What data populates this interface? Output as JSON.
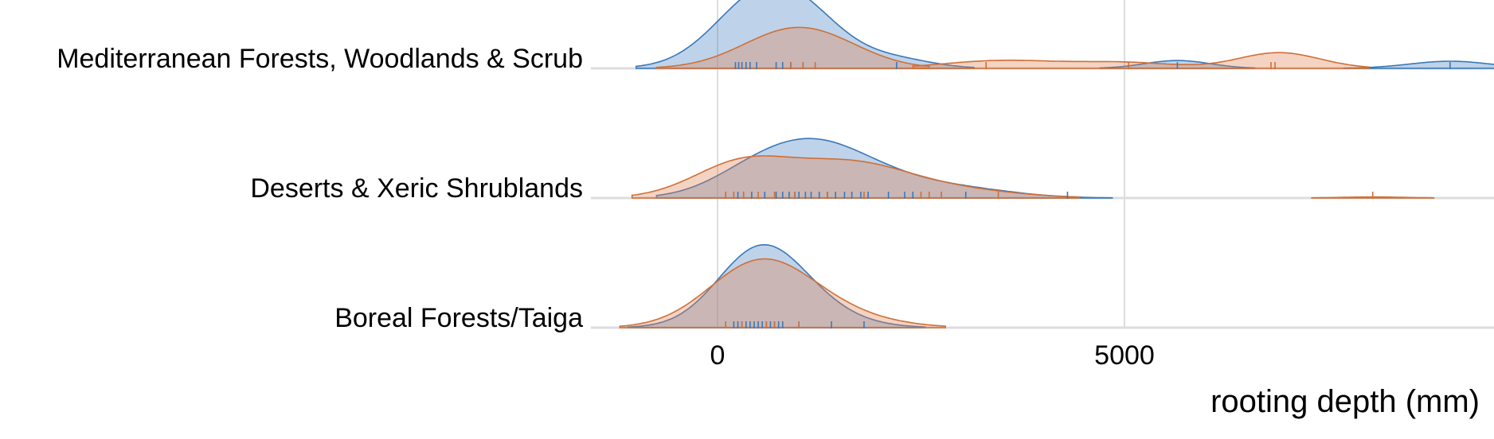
{
  "chart_data": {
    "type": "ridgeline",
    "xlabel": "rooting depth (mm)",
    "x_ticks": [
      0,
      5000
    ],
    "x_range": [
      -1550,
      9600
    ],
    "grid": "vertical",
    "colors": {
      "blue": "#3a78b9",
      "orange": "#cf6f36"
    },
    "rows": [
      {
        "label": "Mediterranean Forests, Woodlands & Scrub",
        "series": [
          {
            "color": "blue",
            "segments": [
              {
                "range": [
                  -1000,
                  3150
                ],
                "peaks": [
                  [
                    550,
                    580,
                    1.0
                  ],
                  [
                    1200,
                    500,
                    0.35
                  ],
                  [
                    2200,
                    450,
                    0.12
                  ]
                ]
              },
              {
                "range": [
                  4700,
                  6600
                ],
                "peaks": [
                  [
                    5650,
                    400,
                    0.11
                  ]
                ]
              },
              {
                "range": [
                  7700,
                  9600
                ],
                "peaks": [
                  [
                    9000,
                    500,
                    0.1
                  ]
                ]
              }
            ],
            "rugs": [
              220,
              260,
              300,
              350,
              400,
              480,
              720,
              800,
              900,
              1050,
              2200,
              5650,
              9000
            ]
          },
          {
            "color": "orange",
            "segments": [
              {
                "range": [
                  -750,
                  2600
                ],
                "peaks": [
                  [
                    900,
                    620,
                    0.5
                  ],
                  [
                    1500,
                    550,
                    0.12
                  ]
                ]
              },
              {
                "range": [
                  2400,
                  8000
                ],
                "peaks": [
                  [
                    3500,
                    700,
                    0.11
                  ],
                  [
                    5000,
                    600,
                    0.08
                  ],
                  [
                    6900,
                    500,
                    0.22
                  ]
                ]
              }
            ],
            "rugs": [
              900,
              1050,
              1200,
              3300,
              5050,
              6800,
              6850
            ]
          }
        ]
      },
      {
        "label": "Deserts & Xeric Shrublands",
        "series": [
          {
            "color": "blue",
            "segments": [
              {
                "range": [
                  -750,
                  4850
                ],
                "peaks": [
                  [
                    1100,
                    700,
                    0.72
                  ],
                  [
                    300,
                    500,
                    0.12
                  ],
                  [
                    2200,
                    800,
                    0.2
                  ],
                  [
                    3300,
                    600,
                    0.05
                  ]
                ]
              }
            ],
            "rugs": [
              250,
              420,
              580,
              720,
              800,
              880,
              950,
              1000,
              1080,
              1150,
              1250,
              1350,
              1450,
              1560,
              1650,
              1760,
              1850,
              2100,
              2300,
              2400,
              3050,
              4300
            ]
          },
          {
            "color": "orange",
            "segments": [
              {
                "range": [
                  -1050,
                  4450
                ],
                "peaks": [
                  [
                    300,
                    600,
                    0.48
                  ],
                  [
                    1600,
                    700,
                    0.45
                  ],
                  [
                    2800,
                    800,
                    0.12
                  ]
                ]
              },
              {
                "range": [
                  7300,
                  8800
                ],
                "peaks": [
                  [
                    8050,
                    400,
                    0.015
                  ]
                ]
              }
            ],
            "rugs": [
              100,
              200,
              320,
              500,
              700,
              950,
              1350,
              1800,
              2500,
              2600,
              2750,
              3450,
              8050
            ]
          }
        ]
      },
      {
        "label": "Boreal Forests/Taiga",
        "series": [
          {
            "color": "blue",
            "segments": [
              {
                "range": [
                  -1100,
                  2550
                ],
                "peaks": [
                  [
                    500,
                    520,
                    0.95
                  ],
                  [
                    1000,
                    600,
                    0.28
                  ]
                ]
              }
            ],
            "rugs": [
              200,
              250,
              300,
              350,
              400,
              450,
              500,
              550,
              600,
              650,
              700,
              750,
              800,
              1000,
              1400,
              1800
            ]
          },
          {
            "color": "orange",
            "segments": [
              {
                "range": [
                  -1200,
                  2800
                ],
                "peaks": [
                  [
                    500,
                    620,
                    0.85
                  ],
                  [
                    1300,
                    700,
                    0.2
                  ]
                ]
              }
            ],
            "rugs": [
              100,
              300,
              600,
              700,
              1000
            ]
          }
        ]
      }
    ]
  }
}
